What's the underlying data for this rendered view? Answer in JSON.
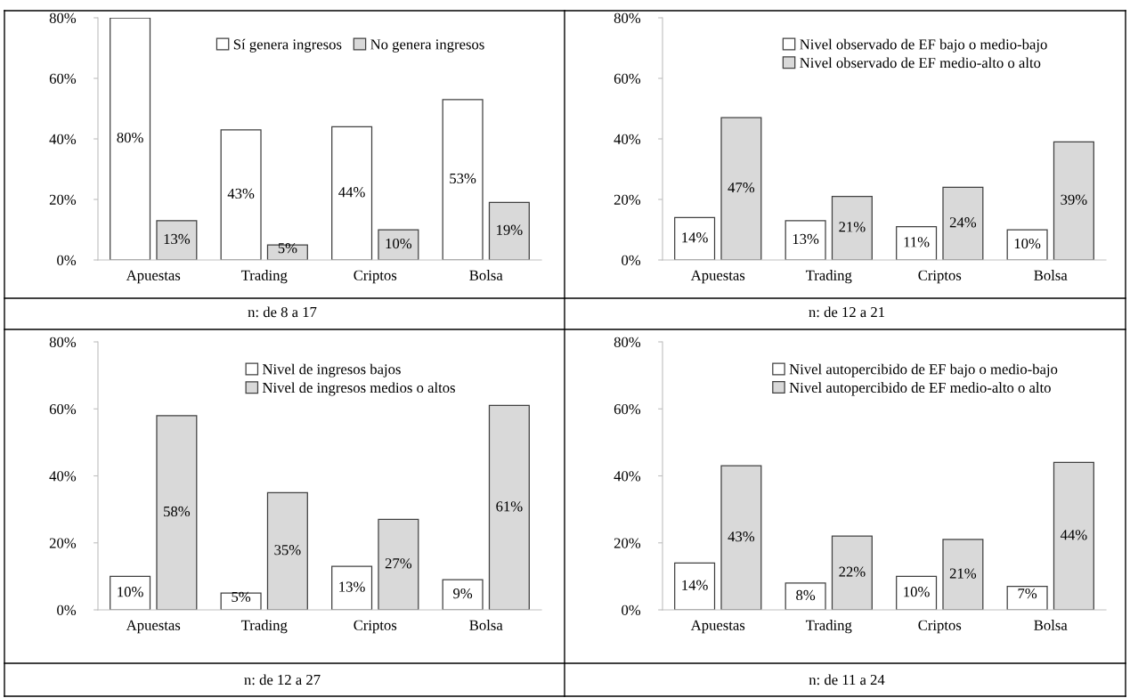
{
  "chart_data": [
    {
      "type": "bar",
      "categories": [
        "Apuestas",
        "Trading",
        "Criptos",
        "Bolsa"
      ],
      "series": [
        {
          "name": "Sí genera ingresos",
          "color": "#ffffff",
          "values": [
            80,
            43,
            44,
            53
          ],
          "value_labels": [
            "80%",
            "43%",
            "44%",
            "53%"
          ]
        },
        {
          "name": "No genera ingresos",
          "color": "#d9d9d9",
          "values": [
            13,
            5,
            10,
            19
          ],
          "value_labels": [
            "13%",
            "5%",
            "10%",
            "19%"
          ]
        }
      ],
      "ylim": [
        0,
        80
      ],
      "yticks": [
        {
          "value": 0,
          "label": "0%"
        },
        {
          "value": 20,
          "label": "20%"
        },
        {
          "value": 40,
          "label": "40%"
        },
        {
          "value": 60,
          "label": "60%"
        },
        {
          "value": 80,
          "label": "80%"
        }
      ],
      "legend": "top",
      "annotations": [
        "n: de 8 a 17"
      ]
    },
    {
      "type": "bar",
      "categories": [
        "Apuestas",
        "Trading",
        "Criptos",
        "Bolsa"
      ],
      "series": [
        {
          "name": "Nivel observado de EF bajo o medio-bajo",
          "color": "#ffffff",
          "values": [
            14,
            13,
            11,
            10
          ],
          "value_labels": [
            "14%",
            "13%",
            "11%",
            "10%"
          ]
        },
        {
          "name": "Nivel observado de EF medio-alto o alto",
          "color": "#d9d9d9",
          "values": [
            47,
            21,
            24,
            39
          ],
          "value_labels": [
            "47%",
            "21%",
            "24%",
            "39%"
          ]
        }
      ],
      "ylim": [
        0,
        80
      ],
      "yticks": [
        {
          "value": 0,
          "label": "0%"
        },
        {
          "value": 20,
          "label": "20%"
        },
        {
          "value": 40,
          "label": "40%"
        },
        {
          "value": 60,
          "label": "60%"
        },
        {
          "value": 80,
          "label": "80%"
        }
      ],
      "legend": "top",
      "annotations": [
        "n: de 12 a 21"
      ]
    },
    {
      "type": "bar",
      "categories": [
        "Apuestas",
        "Trading",
        "Criptos",
        "Bolsa"
      ],
      "series": [
        {
          "name": "Nivel de ingresos bajos",
          "color": "#ffffff",
          "values": [
            10,
            5,
            13,
            9
          ],
          "value_labels": [
            "10%",
            "5%",
            "13%",
            "9%"
          ]
        },
        {
          "name": "Nivel de ingresos medios o altos",
          "color": "#d9d9d9",
          "values": [
            58,
            35,
            27,
            61
          ],
          "value_labels": [
            "58%",
            "35%",
            "27%",
            "61%"
          ]
        }
      ],
      "ylim": [
        0,
        80
      ],
      "yticks": [
        {
          "value": 0,
          "label": "0%"
        },
        {
          "value": 20,
          "label": "20%"
        },
        {
          "value": 40,
          "label": "40%"
        },
        {
          "value": 60,
          "label": "60%"
        },
        {
          "value": 80,
          "label": "80%"
        }
      ],
      "legend": "top",
      "annotations": [
        "n: de 12 a 27"
      ]
    },
    {
      "type": "bar",
      "categories": [
        "Apuestas",
        "Trading",
        "Criptos",
        "Bolsa"
      ],
      "series": [
        {
          "name": "Nivel autopercibido de EF bajo o medio-bajo",
          "color": "#ffffff",
          "values": [
            14,
            8,
            10,
            7
          ],
          "value_labels": [
            "14%",
            "8%",
            "10%",
            "7%"
          ]
        },
        {
          "name": "Nivel autopercibido de EF medio-alto o alto",
          "color": "#d9d9d9",
          "values": [
            43,
            22,
            21,
            44
          ],
          "value_labels": [
            "43%",
            "22%",
            "21%",
            "44%"
          ]
        }
      ],
      "ylim": [
        0,
        80
      ],
      "yticks": [
        {
          "value": 0,
          "label": "0%"
        },
        {
          "value": 20,
          "label": "20%"
        },
        {
          "value": 40,
          "label": "40%"
        },
        {
          "value": 60,
          "label": "60%"
        },
        {
          "value": 80,
          "label": "80%"
        }
      ],
      "legend": "top",
      "annotations": [
        "n: de 11 a 24"
      ]
    }
  ]
}
